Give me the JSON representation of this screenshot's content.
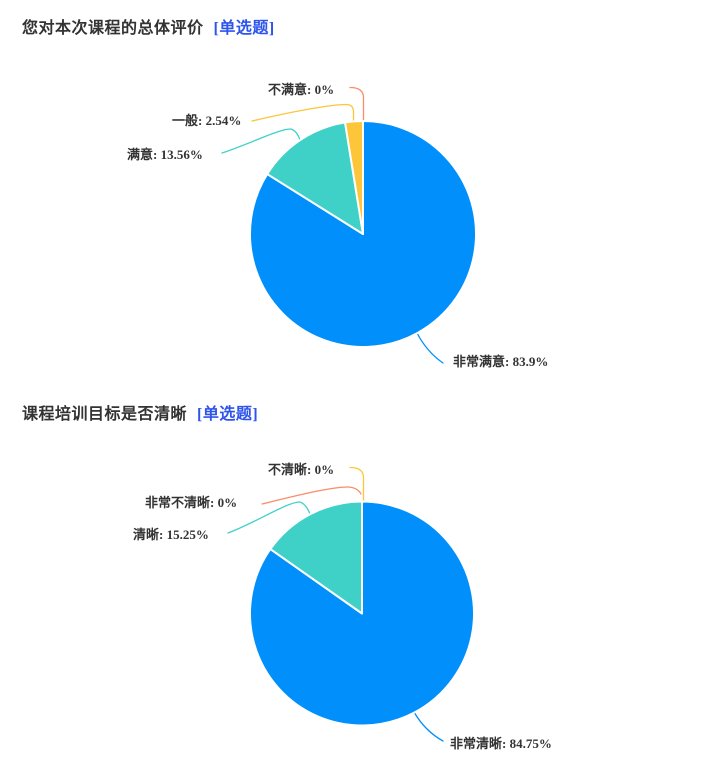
{
  "page": {
    "background": "#ffffff",
    "text_color": "#333333",
    "tag_color": "#2f54eb"
  },
  "charts": [
    {
      "title": "您对本次课程的总体评价",
      "tag": "[单选题]",
      "chart_data": {
        "type": "pie",
        "categories": [
          "非常满意",
          "满意",
          "一般",
          "不满意"
        ],
        "values": [
          83.9,
          13.56,
          2.54,
          0
        ],
        "unit": "%",
        "colors": [
          "#0190fb",
          "#3fd1c7",
          "#fdc53a",
          "#fa8c68"
        ],
        "labels": [
          "非常满意: 83.9%",
          "满意: 13.56%",
          "一般: 2.54%",
          "不满意: 0%"
        ],
        "title": "您对本次课程的总体评价",
        "start_angle": "12-oclock",
        "direction": "clockwise",
        "legend": "none",
        "label_style": "outside-with-leader-lines"
      }
    },
    {
      "title": "课程培训目标是否清晰",
      "tag": "[单选题]",
      "chart_data": {
        "type": "pie",
        "categories": [
          "非常清晰",
          "清晰",
          "非常不清晰",
          "不清晰"
        ],
        "values": [
          84.75,
          15.25,
          0,
          0
        ],
        "unit": "%",
        "colors": [
          "#0190fb",
          "#3fd1c7",
          "#fa8c68",
          "#fdc53a"
        ],
        "labels": [
          "非常清晰: 84.75%",
          "清晰: 15.25%",
          "非常不清晰: 0%",
          "不清晰: 0%"
        ],
        "title": "课程培训目标是否清晰",
        "start_angle": "12-oclock",
        "direction": "clockwise",
        "legend": "none",
        "label_style": "outside-with-leader-lines"
      }
    }
  ]
}
